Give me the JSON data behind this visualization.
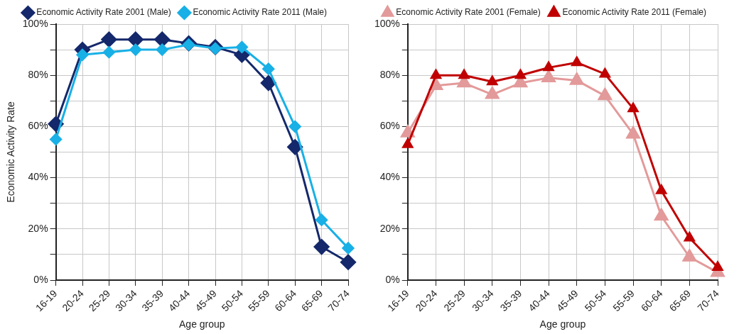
{
  "chart_data": [
    {
      "type": "line",
      "xlabel": "Age group",
      "ylabel": "Economic Activity Rate",
      "categories": [
        "16-19",
        "20-24",
        "25-29",
        "30-34",
        "35-39",
        "40-44",
        "45-49",
        "50-54",
        "55-59",
        "60-64",
        "65-69",
        "70-74"
      ],
      "series": [
        {
          "name": "Economic Activity Rate 2001 (Male)",
          "color": "#14286b",
          "values": [
            61,
            90,
            94,
            94,
            94,
            92.5,
            91,
            88,
            77,
            52,
            13,
            7
          ]
        },
        {
          "name": "Economic Activity Rate 2011 (Male)",
          "color": "#18b0e6",
          "values": [
            55,
            88,
            89,
            90,
            90,
            92,
            90.5,
            91,
            82.5,
            60,
            23.5,
            12.5
          ]
        }
      ],
      "ylim": [
        0,
        100
      ],
      "yticks": [
        {
          "value": 0,
          "label": "0%"
        },
        {
          "value": 10,
          "label": null
        },
        {
          "value": 20,
          "label": "20%"
        },
        {
          "value": 30,
          "label": null
        },
        {
          "value": 40,
          "label": "40%"
        },
        {
          "value": 50,
          "label": null
        },
        {
          "value": 60,
          "label": "60%"
        },
        {
          "value": 70,
          "label": null
        },
        {
          "value": 80,
          "label": "80%"
        },
        {
          "value": 90,
          "label": null
        },
        {
          "value": 100,
          "label": "100%"
        }
      ],
      "grid": true,
      "legend": "top",
      "marker": "diamond",
      "line_style": "solid"
    },
    {
      "type": "line",
      "xlabel": "Age group",
      "categories": [
        "16-19",
        "20-24",
        "25-29",
        "30-34",
        "35-39",
        "40-44",
        "45-49",
        "50-54",
        "55-59",
        "60-64",
        "65-69",
        "70-74"
      ],
      "series": [
        {
          "name": "Economic Activity Rate 2001 (Female)",
          "color": "#e39a9a",
          "values": [
            57.5,
            76,
            77,
            72.5,
            77,
            79,
            78,
            72,
            57,
            25,
            9,
            3
          ]
        },
        {
          "name": "Economic Activity Rate 2011 (Female)",
          "color": "#c00000",
          "values": [
            53,
            80,
            80,
            77.5,
            80,
            83,
            85,
            80.5,
            67,
            35,
            16.5,
            5
          ]
        }
      ],
      "ylim": [
        0,
        100
      ],
      "yticks": [
        {
          "value": 0,
          "label": "0%"
        },
        {
          "value": 10,
          "label": null
        },
        {
          "value": 20,
          "label": "20%"
        },
        {
          "value": 30,
          "label": null
        },
        {
          "value": 40,
          "label": "40%"
        },
        {
          "value": 50,
          "label": null
        },
        {
          "value": 60,
          "label": "60%"
        },
        {
          "value": 70,
          "label": null
        },
        {
          "value": 80,
          "label": "80%"
        },
        {
          "value": 90,
          "label": null
        },
        {
          "value": 100,
          "label": "100%"
        }
      ],
      "grid": true,
      "legend": "top",
      "marker": "triangle",
      "line_style": "solid"
    }
  ]
}
